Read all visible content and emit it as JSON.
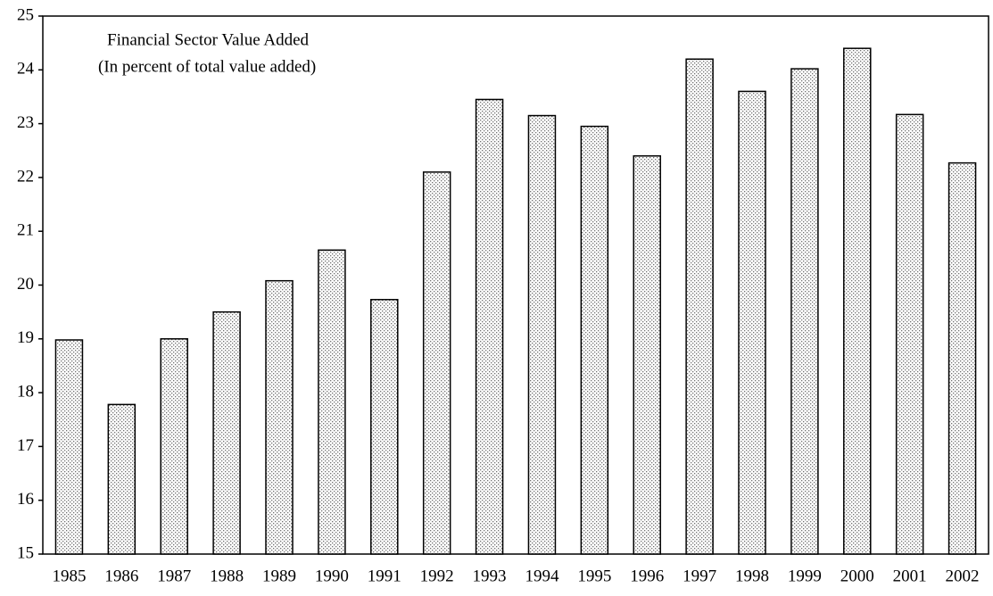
{
  "chart_data": {
    "type": "bar",
    "title": "Financial Sector Value Added",
    "subtitle": "(In percent of total value added)",
    "categories": [
      "1985",
      "1986",
      "1987",
      "1988",
      "1989",
      "1990",
      "1991",
      "1992",
      "1993",
      "1994",
      "1995",
      "1996",
      "1997",
      "1998",
      "1999",
      "2000",
      "2001",
      "2002"
    ],
    "values": [
      18.98,
      17.78,
      19.0,
      19.5,
      20.08,
      20.65,
      19.73,
      22.1,
      23.45,
      23.15,
      22.95,
      22.4,
      24.2,
      23.6,
      24.02,
      24.4,
      23.17,
      22.27
    ],
    "color": "#707070",
    "ylim": [
      15,
      25
    ],
    "yticks": [
      15,
      16,
      17,
      18,
      19,
      20,
      21,
      22,
      23,
      24,
      25
    ],
    "grid": false
  }
}
